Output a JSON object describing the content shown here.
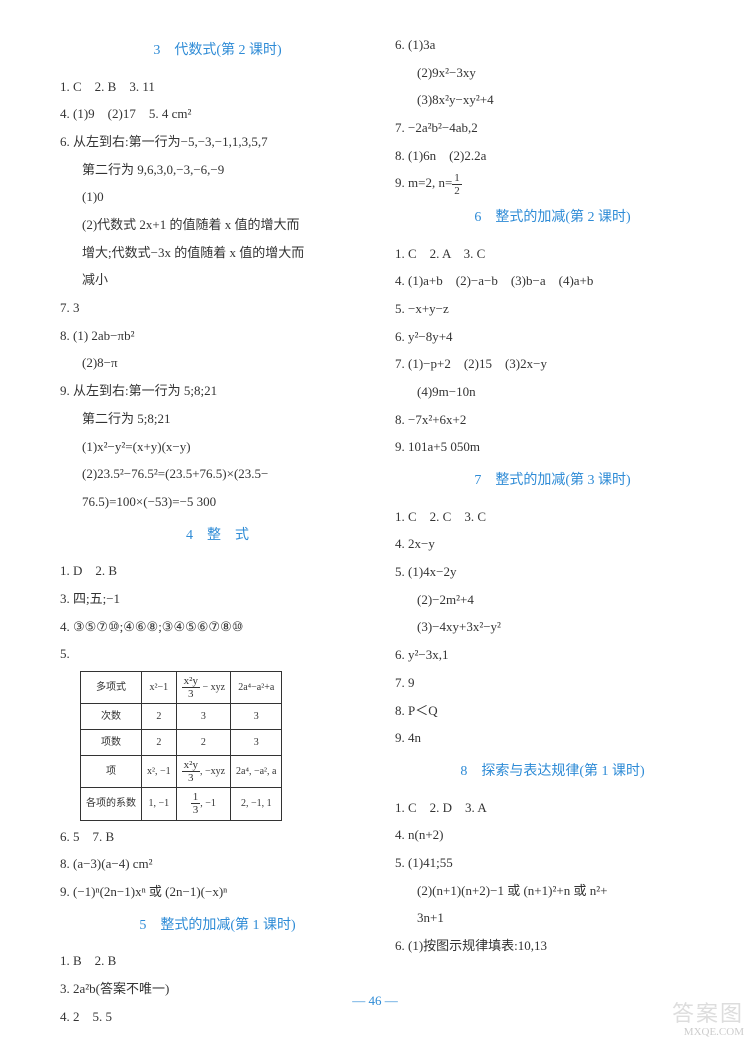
{
  "page_number": "— 46 —",
  "watermark_top": "答案图",
  "watermark_bottom": "MXQE.COM",
  "colors": {
    "heading": "#2e8bd6",
    "text": "#333333",
    "border": "#333333",
    "bg": "#ffffff"
  },
  "left": {
    "s1": {
      "title": "3　代数式(第 2 课时)",
      "l1": "1. C　2. B　3. 11",
      "l2": "4. (1)9　(2)17　5. 4 cm²",
      "l3": "6. 从左到右:第一行为−5,−3,−1,1,3,5,7",
      "l3b": "第二行为 9,6,3,0,−3,−6,−9",
      "l3c": "(1)0",
      "l3d": "(2)代数式 2x+1 的值随着 x 值的增大而",
      "l3e": "增大;代数式−3x 的值随着 x 值的增大而",
      "l3f": "减小",
      "l4": "7. 3",
      "l5": "8. (1) 2ab−πb²",
      "l5b": "(2)8−π",
      "l6": "9. 从左到右:第一行为 5;8;21",
      "l6b": "第二行为 5;8;21",
      "l6c": "(1)x²−y²=(x+y)(x−y)",
      "l6d": "(2)23.5²−76.5²=(23.5+76.5)×(23.5−",
      "l6e": "76.5)=100×(−53)=−5 300"
    },
    "s2": {
      "title": "4　整　式",
      "l1": "1. D　2. B",
      "l2": "3. 四;五;−1",
      "l3": "4. ③⑤⑦⑩;④⑥⑧;③④⑤⑥⑦⑧⑩",
      "l4": "5.",
      "table": {
        "headers": [
          "多项式",
          "x²−1",
          "x²y/3 − xyz",
          "2a⁴−a²+a"
        ],
        "rows": [
          [
            "次数",
            "2",
            "3",
            "3"
          ],
          [
            "项数",
            "2",
            "2",
            "3"
          ],
          [
            "项",
            "x², −1",
            "x²y/3, −xyz",
            "2a⁴, −a², a"
          ],
          [
            "各项的系数",
            "1, −1",
            "1/3, −1",
            "2, −1, 1"
          ]
        ]
      },
      "l5": "6. 5　7. B",
      "l6": "8. (a−3)(a−4) cm²",
      "l7": "9. (−1)ⁿ(2n−1)xⁿ 或 (2n−1)(−x)ⁿ"
    },
    "s3": {
      "title": "5　整式的加减(第 1 课时)",
      "l1": "1. B　2. B",
      "l2": "3. 2a²b(答案不唯一)",
      "l3": "4. 2　5. 5"
    }
  },
  "right": {
    "top": {
      "l1": "6. (1)3a",
      "l1b": "(2)9x²−3xy",
      "l1c": "(3)8x²y−xy²+4",
      "l2": "7. −2a²b²−4ab,2",
      "l3": "8. (1)6n　(2)2.2a",
      "l4a": "9. m=2, n=",
      "l4b_num": "1",
      "l4b_den": "2"
    },
    "s6": {
      "title": "6　整式的加减(第 2 课时)",
      "l1": "1. C　2. A　3. C",
      "l2": "4. (1)a+b　(2)−a−b　(3)b−a　(4)a+b",
      "l3": "5. −x+y−z",
      "l4": "6. y²−8y+4",
      "l5": "7. (1)−p+2　(2)15　(3)2x−y",
      "l5b": "(4)9m−10n",
      "l6": "8. −7x²+6x+2",
      "l7": "9. 101a+5 050m"
    },
    "s7": {
      "title": "7　整式的加减(第 3 课时)",
      "l1": "1. C　2. C　3. C",
      "l2": "4. 2x−y",
      "l3": "5. (1)4x−2y",
      "l3b": "(2)−2m²+4",
      "l3c": "(3)−4xy+3x²−y²",
      "l4": "6. y²−3x,1",
      "l5": "7. 9",
      "l6": "8. P＜Q",
      "l7": "9. 4n"
    },
    "s8": {
      "title": "8　探索与表达规律(第 1 课时)",
      "l1": "1. C　2. D　3. A",
      "l2": "4. n(n+2)",
      "l3": "5. (1)41;55",
      "l3b": "(2)(n+1)(n+2)−1 或 (n+1)²+n 或 n²+",
      "l3c": "3n+1",
      "l4": "6. (1)按图示规律填表:10,13"
    }
  }
}
